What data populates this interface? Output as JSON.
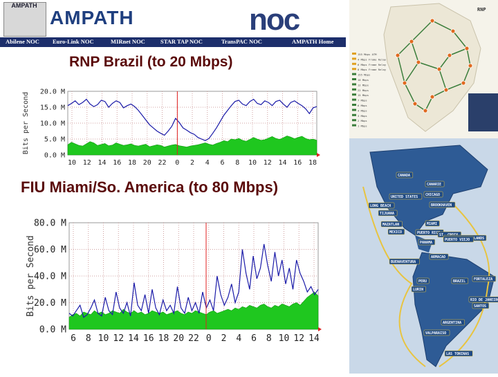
{
  "header": {
    "logo_text": "AMPATH",
    "brand": "AMPATH",
    "noc": "noc",
    "nav": [
      "Abilene NOC",
      "Euro-Link NOC",
      "MIRnet NOC",
      "STAR TAP NOC",
      "TransPAC NOC",
      "AMPATH Home"
    ]
  },
  "colors": {
    "inbound_fill": "#1fc71f",
    "outbound_line": "#1a1aa8",
    "marker": "#e02020",
    "title": "#5a0a0a",
    "nav_bg": "#1c2e6b"
  },
  "chart_data": [
    {
      "type": "area",
      "title": "RNP Brazil (to 20 Mbps)",
      "ylabel": "Bits per Second",
      "y_ticks": [
        "20.0 M",
        "15.0 M",
        "10.0 M",
        "5.0 M",
        "0.0 M"
      ],
      "ylim": [
        0,
        20
      ],
      "x_ticks": [
        "10",
        "12",
        "14",
        "16",
        "18",
        "20",
        "22",
        "0",
        "2",
        "4",
        "6",
        "8",
        "10",
        "12",
        "14",
        "16",
        "18"
      ],
      "grid": true,
      "series": [
        {
          "kind": "line",
          "values": [
            15.5,
            16.2,
            17.0,
            15.8,
            16.5,
            17.5,
            16.0,
            15.2,
            15.8,
            17.2,
            16.8,
            15.0,
            16.2,
            17.0,
            16.5,
            14.8,
            15.5,
            16.0,
            15.2,
            14.0,
            12.5,
            11.0,
            9.5,
            8.5,
            7.5,
            6.8,
            6.2,
            7.5,
            9.0,
            11.5,
            10.2,
            8.5,
            7.8,
            7.0,
            6.5,
            5.5,
            5.0,
            4.5,
            5.2,
            6.8,
            8.5,
            10.5,
            12.5,
            14.0,
            15.5,
            16.8,
            17.2,
            16.0,
            15.5,
            16.8,
            17.5,
            16.2,
            15.8,
            17.0,
            16.5,
            15.5,
            16.8,
            17.2,
            16.0,
            15.0,
            16.5,
            17.0,
            16.2,
            15.5,
            14.5,
            13.0,
            14.8,
            15.2
          ]
        },
        {
          "kind": "area",
          "values": [
            3.2,
            4.0,
            3.5,
            3.0,
            2.8,
            3.5,
            4.2,
            3.8,
            3.0,
            3.3,
            3.6,
            2.9,
            3.1,
            3.8,
            3.4,
            3.0,
            3.2,
            3.5,
            3.0,
            2.8,
            3.1,
            3.4,
            2.6,
            2.9,
            3.2,
            3.0,
            2.5,
            2.8,
            3.1,
            3.3,
            2.9,
            2.7,
            2.5,
            2.8,
            3.0,
            3.2,
            3.5,
            3.8,
            3.4,
            3.1,
            3.6,
            4.0,
            4.5,
            4.2,
            5.0,
            4.8,
            5.2,
            4.6,
            4.3,
            4.9,
            5.5,
            5.0,
            4.6,
            4.8,
            5.3,
            5.8,
            5.2,
            4.9,
            5.4,
            6.0,
            5.6,
            5.1,
            5.5,
            5.9,
            5.2,
            4.8,
            5.0,
            4.6
          ]
        }
      ]
    },
    {
      "type": "area",
      "title": "FIU Miami/So. America (to 80 Mbps)",
      "ylabel": "Bits per Second",
      "y_ticks": [
        "80.0 M",
        "60.0 M",
        "40.0 M",
        "20.0 M",
        "0.0 M"
      ],
      "ylim": [
        0,
        80
      ],
      "x_ticks": [
        "6",
        "8",
        "10",
        "12",
        "14",
        "16",
        "18",
        "20",
        "22",
        "0",
        "2",
        "4",
        "6",
        "8",
        "10",
        "12",
        "14"
      ],
      "grid": true,
      "series": [
        {
          "kind": "line",
          "values": [
            12,
            10,
            14,
            18,
            9,
            11,
            16,
            22,
            12,
            10,
            24,
            14,
            11,
            28,
            16,
            12,
            20,
            10,
            35,
            18,
            14,
            26,
            12,
            30,
            16,
            11,
            22,
            14,
            18,
            12,
            32,
            16,
            12,
            24,
            14,
            20,
            12,
            28,
            16,
            22,
            14,
            40,
            26,
            18,
            24,
            34,
            20,
            28,
            60,
            42,
            30,
            55,
            38,
            46,
            64,
            48,
            36,
            58,
            40,
            52,
            34,
            46,
            30,
            52,
            42,
            36,
            28,
            32,
            26,
            30
          ]
        },
        {
          "kind": "area",
          "values": [
            9,
            11,
            12,
            10,
            13,
            12,
            11,
            14,
            12,
            13,
            11,
            12,
            14,
            13,
            12,
            15,
            13,
            12,
            14,
            12,
            13,
            11,
            12,
            14,
            13,
            12,
            13,
            11,
            12,
            13,
            14,
            12,
            11,
            13,
            12,
            14,
            13,
            12,
            11,
            13,
            14,
            12,
            13,
            14,
            15,
            14,
            16,
            15,
            17,
            16,
            18,
            17,
            16,
            18,
            19,
            17,
            16,
            18,
            17,
            19,
            18,
            17,
            19,
            20,
            18,
            21,
            24,
            26,
            28,
            25
          ]
        }
      ]
    }
  ],
  "map": {
    "top_label": "RNP",
    "legend": [
      "155 Mbps ATM",
      "4 Mbps Frame Relay",
      "6 Mbps Frame Relay",
      "8 Mbps Frame Relay",
      "155 Mbps",
      "10 Mbps",
      "12 Mbps",
      "22 Mbps",
      "15 Mbps",
      "7 Mbps",
      "6 Mbps",
      "4 Mbps",
      "3 Mbps",
      "2 Mbps",
      "1 Mbps"
    ],
    "labels": [
      "CANADA",
      "CANARIE",
      "UNITED STATES",
      "CHICAGO",
      "BROOKHAVEN",
      "LONG BEACH",
      "TIJUANA",
      "MAZATLAN",
      "MIAMI",
      "MEXICO",
      "PUERTO RICO",
      "ST. CROIX",
      "U.S. VIRGIN ISLANDS",
      "PUERTO VIEJO",
      "PANAMA",
      "ARMACAO",
      "BUENAVENTURA",
      "FORTALEZA",
      "PERU",
      "BRAZIL",
      "LURIN",
      "RIO DE JANEIRO",
      "SANTOS",
      "ARGENTINA",
      "VALPARAISO",
      "LAS TONINAS"
    ]
  }
}
